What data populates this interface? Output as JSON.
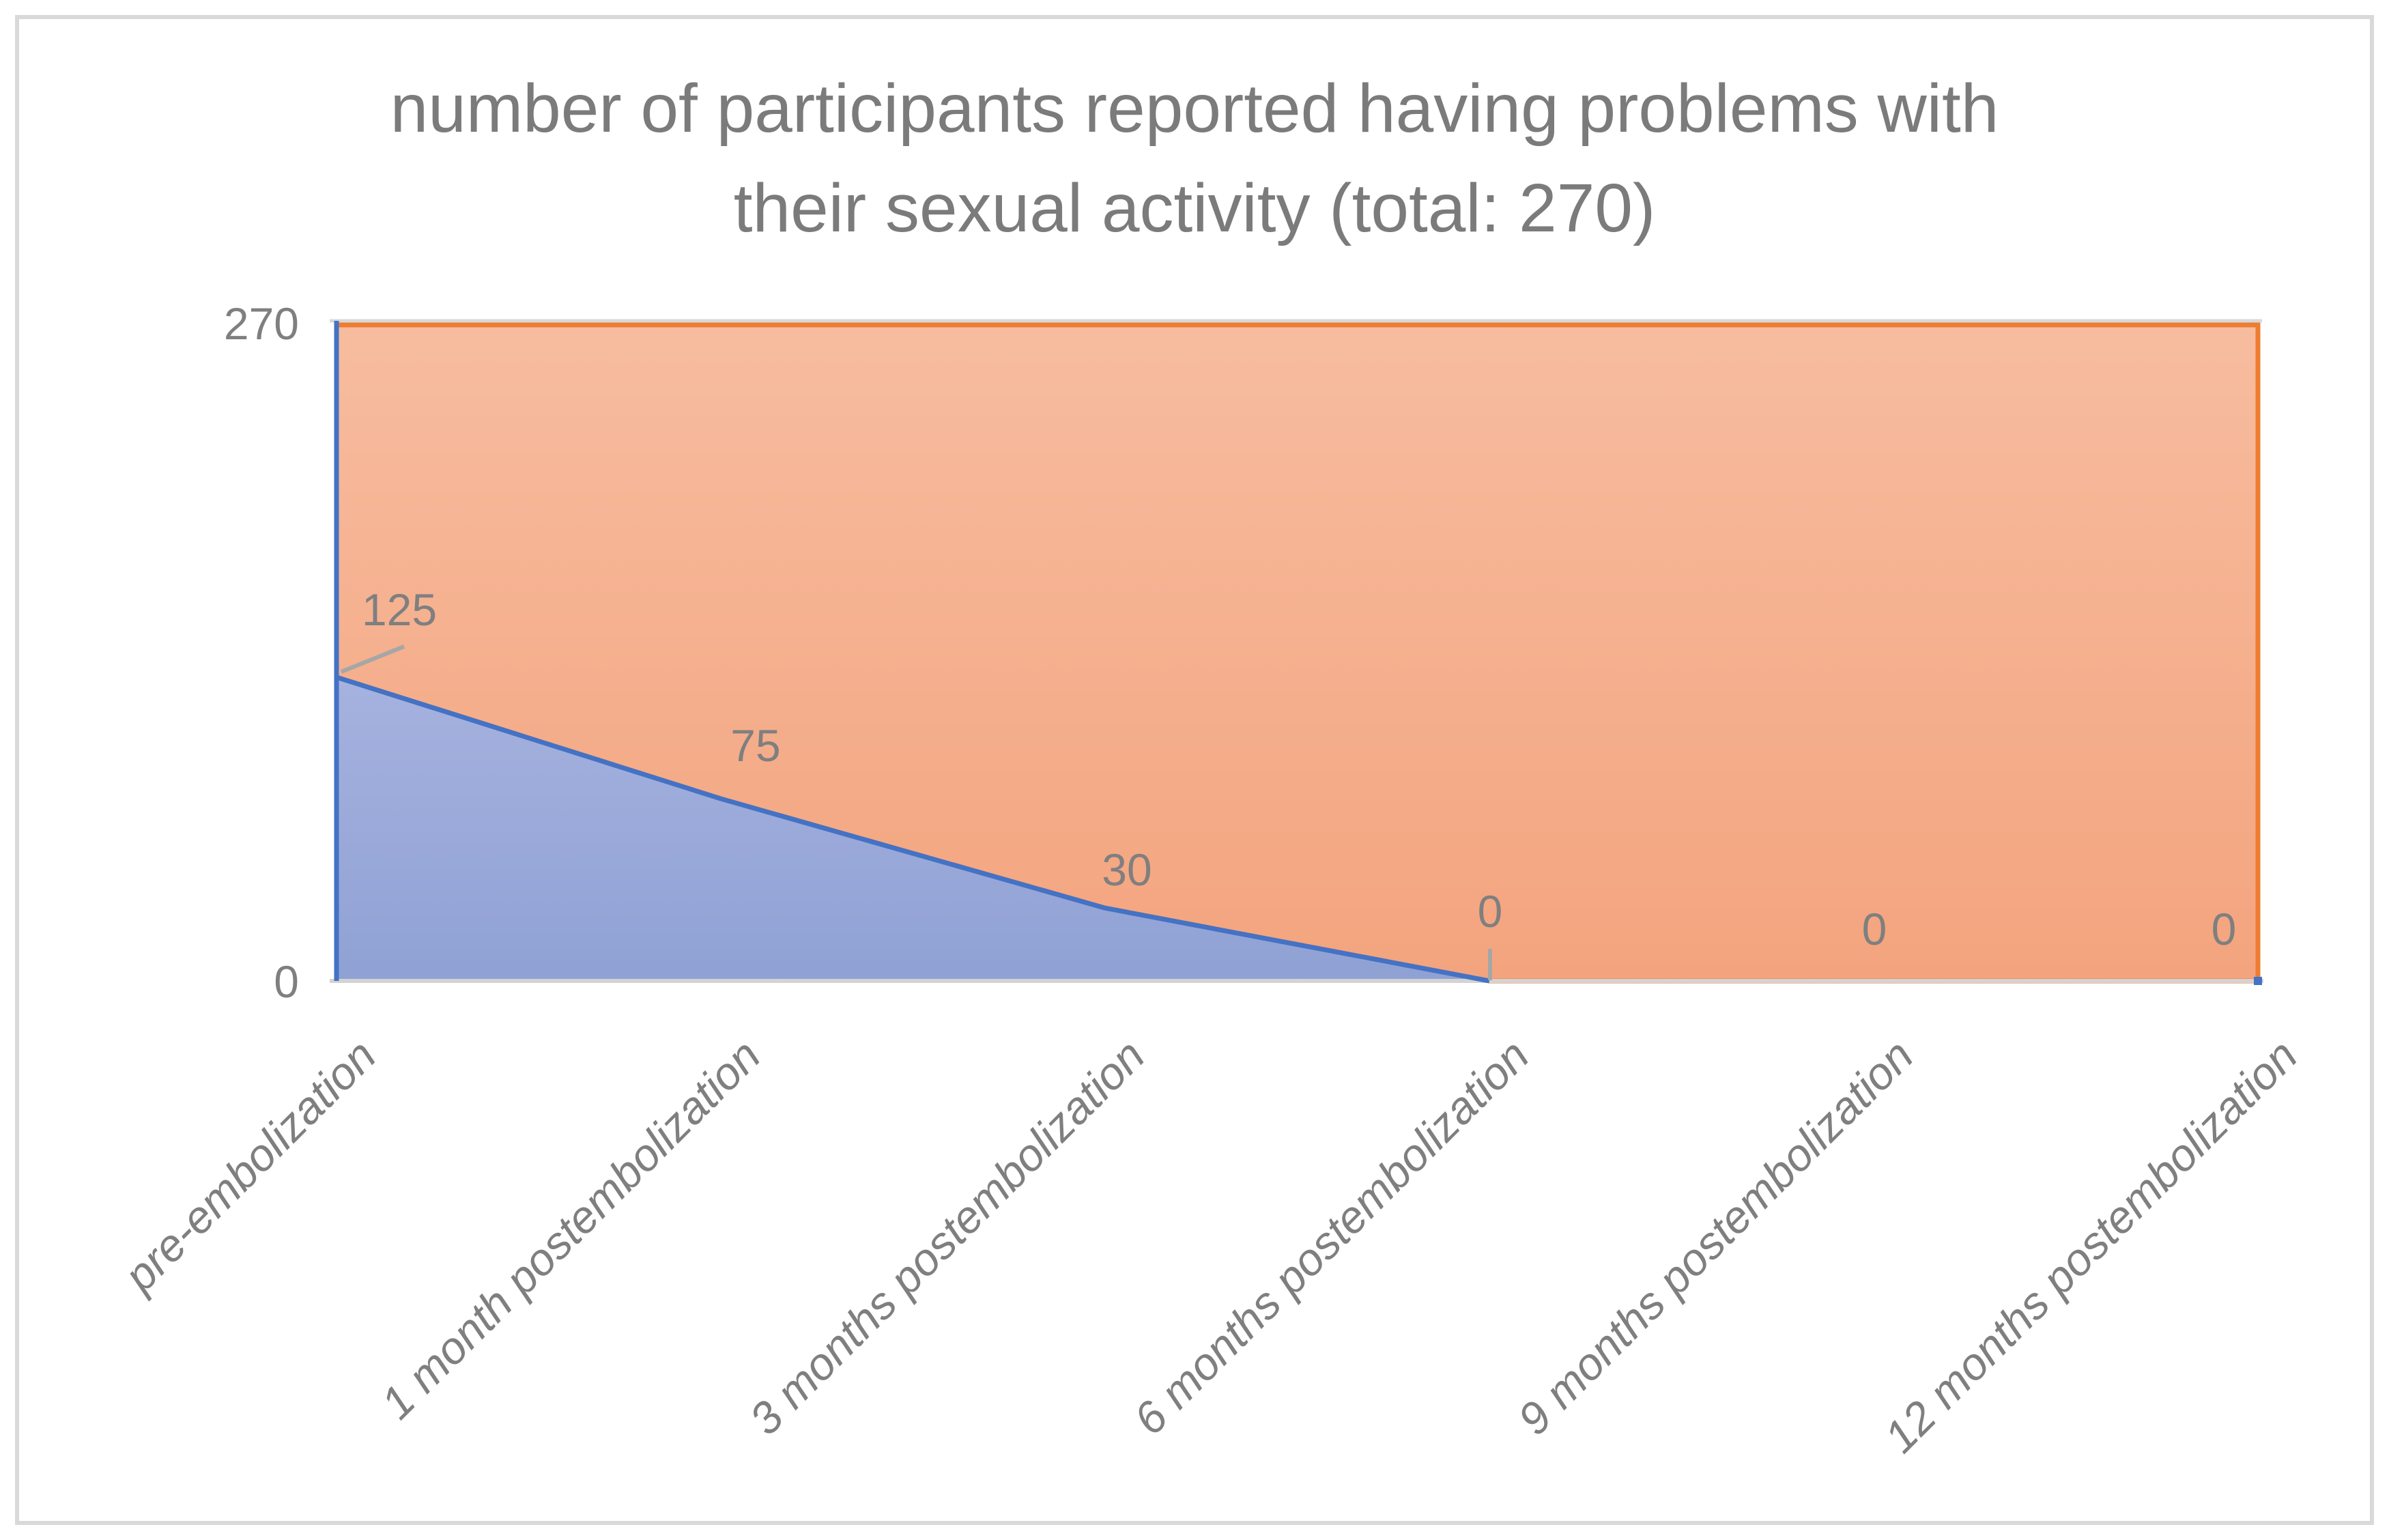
{
  "chart_data": {
    "type": "area",
    "stacked_to_total": true,
    "title": "number of participants reported having problems with their sexual activity (total: 270)",
    "title_lines": [
      "number of participants reported having problems with",
      "their sexual activity (total: 270)"
    ],
    "total": 270,
    "categories": [
      "pre-embolization",
      "1 month postembolization",
      "3 months postembolization",
      "6 months postembolization",
      "9 months postembolization",
      "12 months postembolization"
    ],
    "series": [
      {
        "role": "participants-with-problems",
        "values": [
          125,
          75,
          30,
          0,
          0,
          0
        ],
        "data_labels": [
          "125",
          "75",
          "30",
          "0",
          "0",
          "0"
        ]
      },
      {
        "role": "remainder-to-total",
        "fills_from_series_0_up_to_total": true
      }
    ],
    "ylim": [
      0,
      270
    ],
    "yticks": [
      "270",
      "0"
    ],
    "xlabel": "",
    "ylabel": "",
    "legend": "none",
    "gridlines": "top-only"
  },
  "colors": {
    "blue_line": "#4472C4",
    "blue_fill_top": "#A6B2DF",
    "blue_fill_bottom": "#8FA1D4",
    "orange_line": "#ED7D31",
    "orange_fill_top": "#F7BC9F",
    "orange_fill_bottom": "#F3A47E",
    "label_gray": "#7F7F7F",
    "title_gray": "#7B7B7B",
    "axis_line_gray": "#D3D3D3",
    "gridline_gray": "#D9D9D9",
    "leader_line_gray": "#A6A6A6",
    "frame_gray": "#D9D9D9"
  }
}
